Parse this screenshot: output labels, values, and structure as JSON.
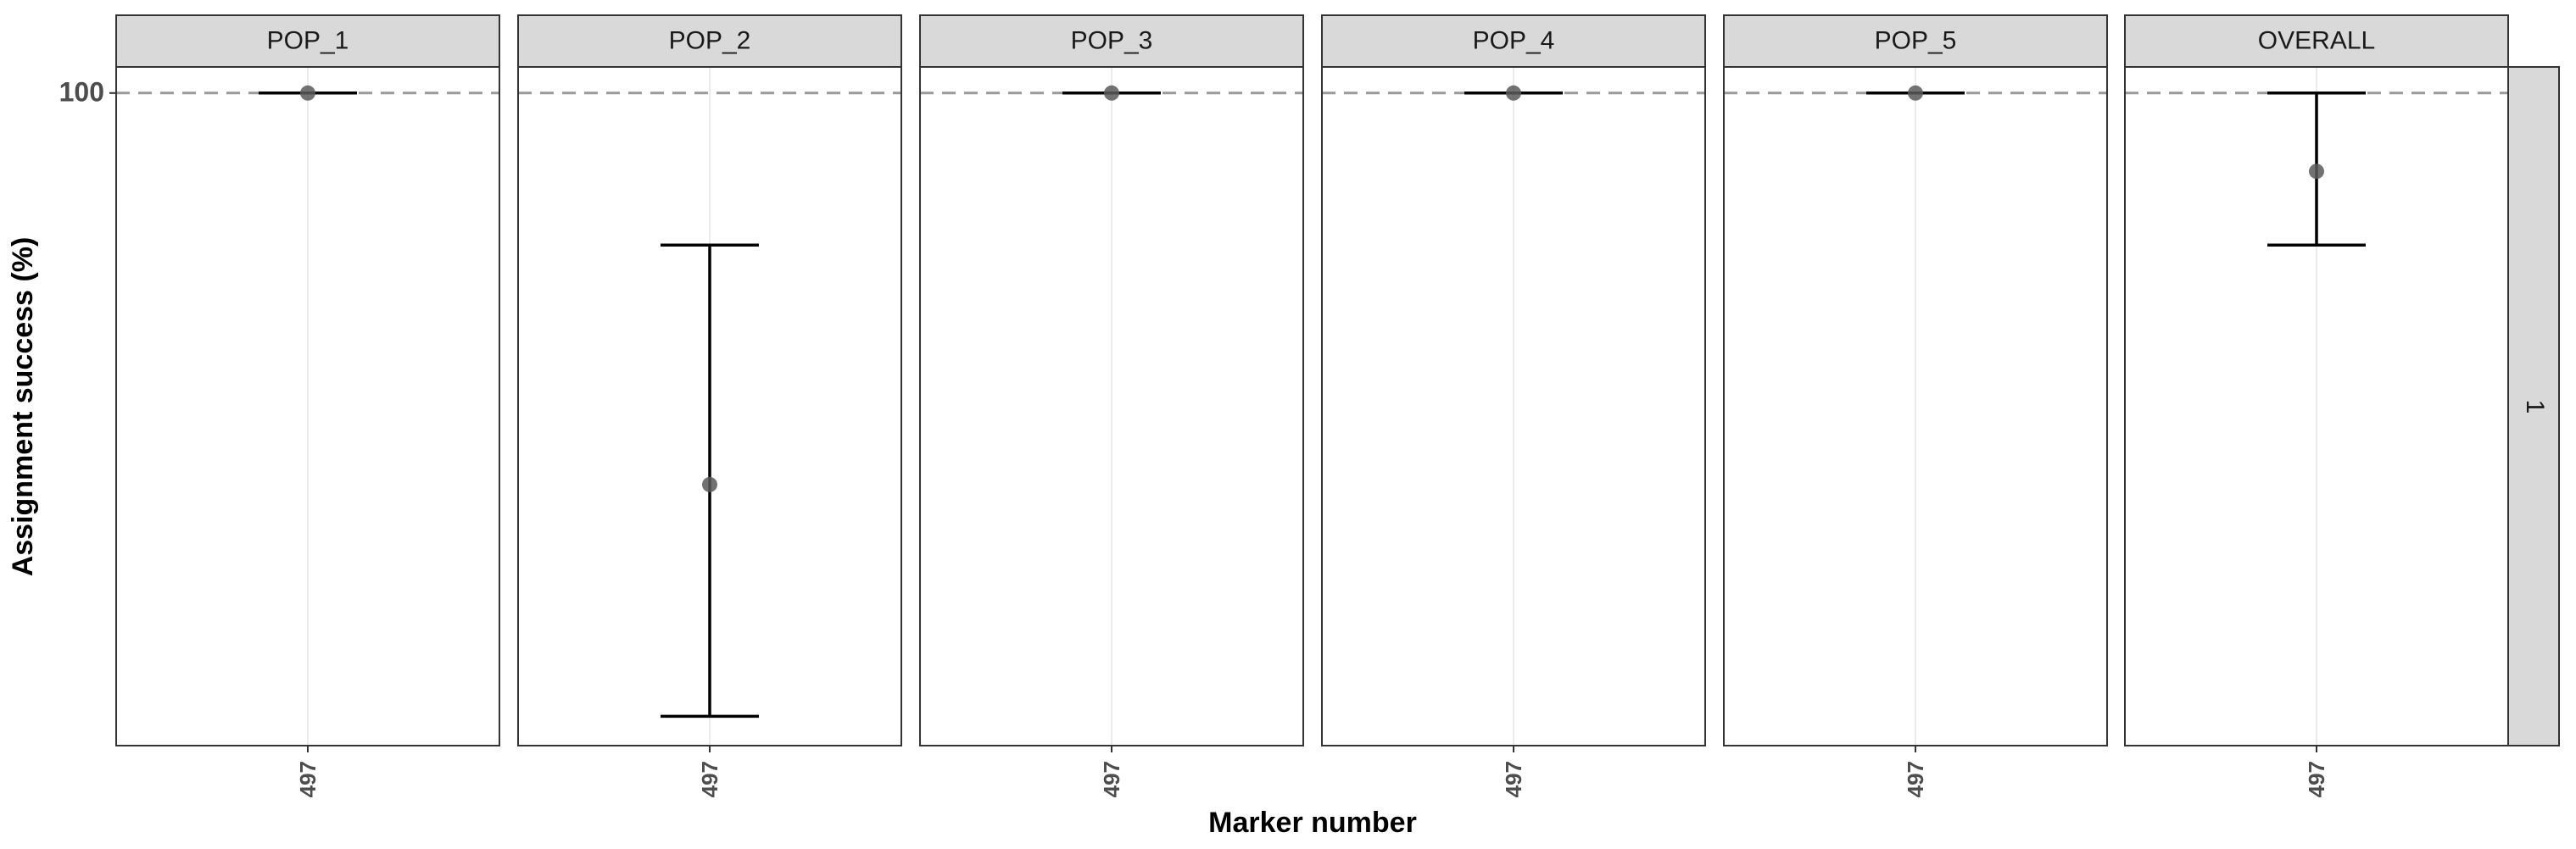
{
  "chart_data": {
    "type": "scatter",
    "title": "",
    "xlabel": "Marker number",
    "ylabel": "Assignment success (%)",
    "y_ticks": [
      100
    ],
    "ylim": [
      0,
      104
    ],
    "reference_line": {
      "y": 100,
      "style": "dashed",
      "color": "#999999"
    },
    "row_strip": "1",
    "grid": true,
    "colors": {
      "point": "#595959",
      "errorbar": "#000000",
      "strip_fill": "#d9d9d9",
      "panel_border": "#333333",
      "gridline": "#ebebeb"
    },
    "panels": [
      {
        "facet": "POP_1",
        "x": "497",
        "mean": 100.0,
        "lower": 100.0,
        "upper": 100.0
      },
      {
        "facet": "POP_2",
        "x": "497",
        "mean": 40.0,
        "lower": 4.5,
        "upper": 76.7
      },
      {
        "facet": "POP_3",
        "x": "497",
        "mean": 100.0,
        "lower": 100.0,
        "upper": 100.0
      },
      {
        "facet": "POP_4",
        "x": "497",
        "mean": 100.0,
        "lower": 100.0,
        "upper": 100.0
      },
      {
        "facet": "POP_5",
        "x": "497",
        "mean": 100.0,
        "lower": 100.0,
        "upper": 100.0
      },
      {
        "facet": "OVERALL",
        "x": "497",
        "mean": 88.0,
        "lower": 76.7,
        "upper": 100.0
      }
    ]
  }
}
